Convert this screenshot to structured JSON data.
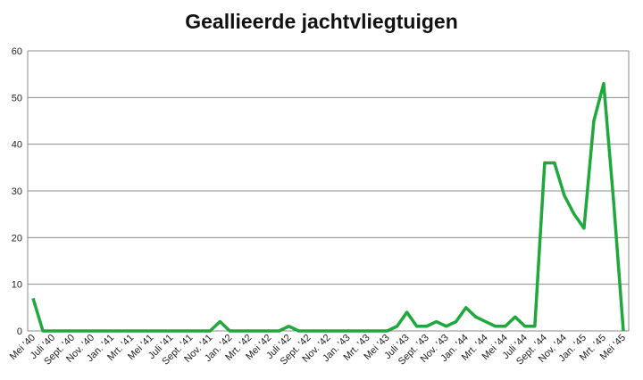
{
  "chart_data": {
    "type": "line",
    "title": "Geallieerde jachtvliegtuigen",
    "categories": [
      "Mei '40",
      null,
      "Juli '40",
      null,
      "Sept. '40",
      null,
      "Nov. '40",
      null,
      "Jan. '41",
      null,
      "Mrt. '41",
      null,
      "Mei '41",
      null,
      "Juli '41",
      null,
      "Sept. '41",
      null,
      "Nov. '41",
      null,
      "Jan. '42",
      null,
      "Mrt. '42",
      null,
      "Mei '42",
      null,
      "Juli '42",
      null,
      "Sept. '42",
      null,
      "Nov. '42",
      null,
      "Jan. '43",
      null,
      "Mrt. '43",
      null,
      "Mei '43",
      null,
      "Juli '43",
      null,
      "Sept. '43",
      null,
      "Nov. '43",
      null,
      "Jan. '44",
      null,
      "Mrt. '44",
      null,
      "Mei '44",
      null,
      "Juli '44",
      null,
      "Sept. '44",
      null,
      "Nov. '44",
      null,
      "Jan. '45",
      null,
      "Mrt. '45",
      null,
      "Mei '45"
    ],
    "series": [
      {
        "color": "#1fa83c",
        "values": [
          7,
          0,
          0,
          0,
          0,
          0,
          0,
          0,
          0,
          0,
          0,
          0,
          0,
          0,
          0,
          0,
          0,
          0,
          0,
          2,
          0,
          0,
          0,
          0,
          0,
          0,
          1,
          0,
          0,
          0,
          0,
          0,
          0,
          0,
          0,
          0,
          0,
          1,
          4,
          1,
          1,
          2,
          1,
          2,
          5,
          3,
          2,
          1,
          1,
          3,
          1,
          1,
          36,
          36,
          29,
          25,
          22,
          45,
          53,
          28,
          0
        ]
      }
    ],
    "ylim": [
      0,
      60
    ],
    "yticks": [
      0,
      10,
      20,
      30,
      40,
      50,
      60
    ],
    "grid": true
  }
}
